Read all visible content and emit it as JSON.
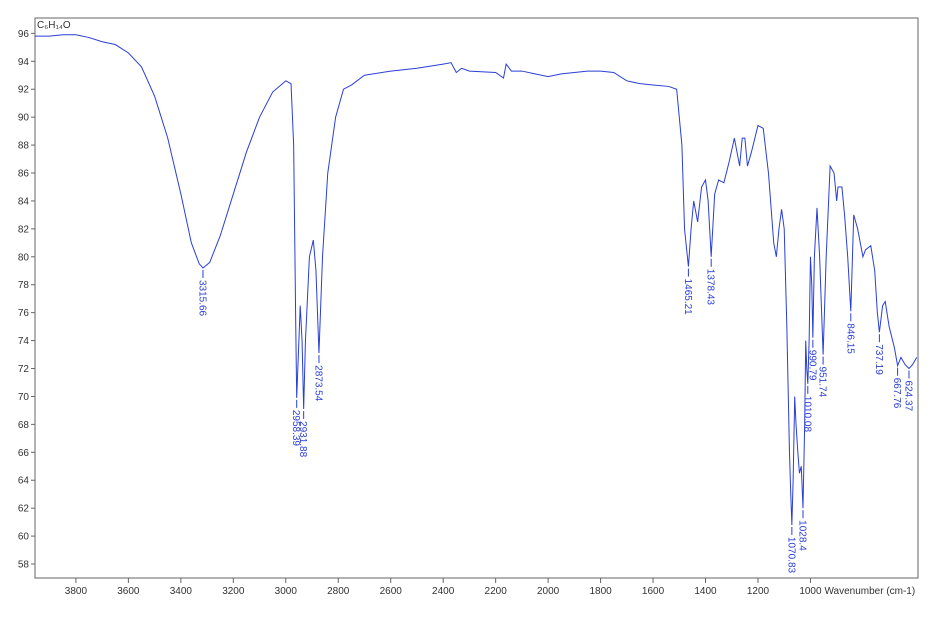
{
  "chart_data": {
    "type": "line",
    "title": "C₆H₁₄O",
    "xlabel": "Wavenumber (cm-1)",
    "xlim": [
      3956,
      590
    ],
    "ylim": [
      57,
      97.1
    ],
    "xticks": [
      3800,
      3600,
      3400,
      3200,
      3000,
      2800,
      2600,
      2400,
      2200,
      2000,
      1800,
      1600,
      1400,
      1200,
      1000
    ],
    "yticks": [
      58,
      60,
      62,
      64,
      66,
      68,
      70,
      72,
      74,
      76,
      78,
      80,
      82,
      84,
      86,
      88,
      90,
      92,
      94,
      96
    ],
    "x": [
      3956,
      3900,
      3850,
      3800,
      3750,
      3700,
      3650,
      3600,
      3550,
      3500,
      3450,
      3400,
      3360,
      3330,
      3315.66,
      3290,
      3250,
      3200,
      3150,
      3100,
      3050,
      3000,
      2980,
      2970,
      2962,
      2958.39,
      2950,
      2945,
      2938,
      2931.88,
      2925,
      2910,
      2895,
      2885,
      2873.54,
      2860,
      2840,
      2810,
      2780,
      2750,
      2700,
      2600,
      2500,
      2400,
      2370,
      2350,
      2330,
      2300,
      2200,
      2170,
      2160,
      2140,
      2100,
      2050,
      2000,
      1950,
      1900,
      1850,
      1800,
      1750,
      1700,
      1650,
      1600,
      1540,
      1510,
      1490,
      1480,
      1465.21,
      1455,
      1445,
      1430,
      1415,
      1400,
      1390,
      1378.43,
      1365,
      1350,
      1330,
      1310,
      1290,
      1280,
      1270,
      1260,
      1250,
      1240,
      1225,
      1200,
      1180,
      1160,
      1140,
      1130,
      1120,
      1110,
      1100,
      1090,
      1080,
      1075,
      1070.83,
      1066,
      1060,
      1055,
      1048,
      1042,
      1035,
      1028.4,
      1022,
      1018,
      1014,
      1010.08,
      1005,
      1000,
      995,
      990.79,
      985,
      975,
      965,
      951.74,
      940,
      925,
      910,
      900,
      895,
      880,
      870,
      858,
      846.15,
      835,
      820,
      800,
      790,
      770,
      755,
      745,
      737.19,
      725,
      715,
      700,
      680,
      667.76,
      655,
      640,
      624.37,
      610,
      595
    ],
    "series": [
      {
        "color": "#2a3fd6",
        "values": [
          95.8,
          95.8,
          95.9,
          95.9,
          95.7,
          95.4,
          95.2,
          94.6,
          93.6,
          91.5,
          88.5,
          84.5,
          81,
          79.5,
          79.2,
          79.6,
          81.5,
          84.5,
          87.5,
          90,
          91.8,
          92.6,
          92.4,
          88,
          75,
          69.9,
          74,
          76.5,
          74,
          69.1,
          74,
          80,
          81.2,
          79,
          73.1,
          80,
          86,
          90,
          92,
          92.3,
          93,
          93.3,
          93.5,
          93.8,
          93.9,
          93.2,
          93.5,
          93.3,
          93.2,
          92.8,
          93.8,
          93.3,
          93.3,
          93.1,
          92.9,
          93.1,
          93.2,
          93.3,
          93.3,
          93.2,
          92.6,
          92.4,
          92.3,
          92.2,
          92,
          88,
          82,
          79.3,
          82,
          84,
          82.5,
          85,
          85.5,
          84,
          80,
          84.5,
          85.5,
          85.3,
          86.8,
          88.5,
          87.5,
          86.5,
          88.5,
          88.5,
          86.5,
          87.5,
          89.4,
          89.2,
          86,
          81,
          80,
          82,
          83.4,
          82,
          75,
          66,
          63,
          60.8,
          64,
          70,
          68,
          66,
          64.5,
          65,
          62,
          68,
          74,
          72,
          70.9,
          74,
          80,
          78,
          74.2,
          80,
          83.5,
          80,
          73,
          80,
          86.5,
          86,
          84,
          85,
          85,
          83,
          80,
          76.1,
          83,
          82,
          80,
          80.5,
          80.8,
          79,
          76,
          74.6,
          76.5,
          76.8,
          75,
          73.5,
          72.2,
          72.8,
          72.3,
          72,
          72.3,
          72.8
        ]
      }
    ],
    "peaks": {
      "x": [
        3315.66,
        2958.39,
        2931.88,
        2873.54,
        1465.21,
        1378.43,
        1070.83,
        1028.4,
        1010.08,
        990.79,
        951.74,
        846.15,
        737.19,
        667.76,
        624.37
      ],
      "y": [
        79.2,
        69.9,
        69.1,
        73.1,
        79.3,
        80,
        60.8,
        62,
        70.9,
        74.2,
        73,
        76.1,
        74.6,
        72.2,
        72
      ]
    }
  }
}
